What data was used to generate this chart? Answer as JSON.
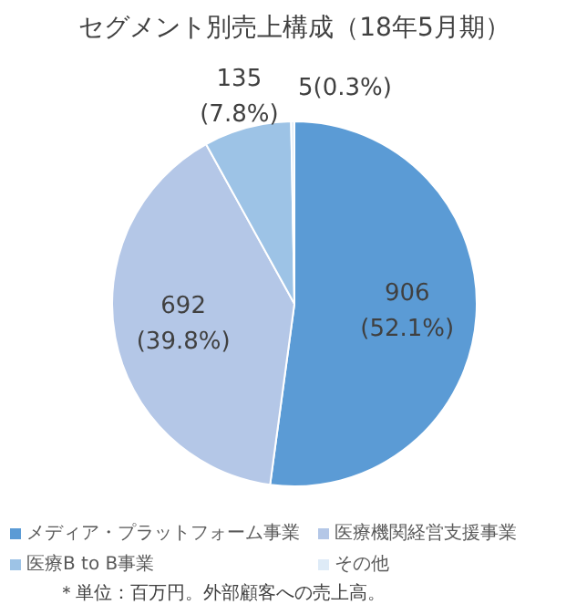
{
  "chart_data": {
    "type": "pie",
    "title": "セグメント別売上構成（18年5月期）",
    "categories": [
      "メディア・プラットフォーム事業",
      "医療機関経営支援事業",
      "医療B to B事業",
      "その他"
    ],
    "values": [
      906,
      692,
      135,
      5
    ],
    "colors": [
      "#5b9bd5",
      "#b4c7e7",
      "#9dc3e6",
      "#deebf7"
    ],
    "value_labels": [
      "906\n(52.1%)",
      "692\n(39.8%)",
      "135\n(7.8%)",
      "5(0.3%)"
    ],
    "legend": "bottom",
    "annotations": [
      "＊単位：百万円。外部顧客への売上高。"
    ]
  }
}
